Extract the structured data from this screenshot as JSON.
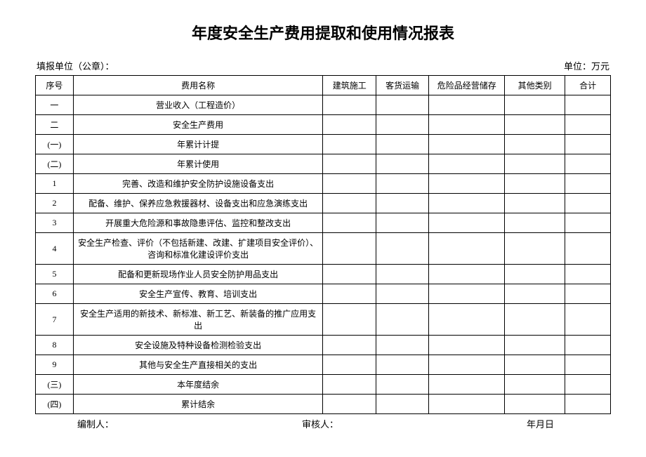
{
  "title": "年度安全生产费用提取和使用情况报表",
  "meta": {
    "left": "填报单位（公章）：",
    "right": "单位：万元"
  },
  "headers": {
    "seq": "序号",
    "name": "费用名称",
    "col_a": "建筑施工",
    "col_b": "客货运输",
    "col_c": "危险品经营储存",
    "col_d": "其他类别",
    "col_e": "合计"
  },
  "rows": [
    {
      "seq": "一",
      "name": "营业收入（工程造价）",
      "a": "",
      "b": "",
      "c": "",
      "d": "",
      "e": ""
    },
    {
      "seq": "二",
      "name": "安全生产费用",
      "a": "",
      "b": "",
      "c": "",
      "d": "",
      "e": ""
    },
    {
      "seq": "(一)",
      "name": "年累计计提",
      "a": "",
      "b": "",
      "c": "",
      "d": "",
      "e": ""
    },
    {
      "seq": "(二)",
      "name": "年累计使用",
      "a": "",
      "b": "",
      "c": "",
      "d": "",
      "e": ""
    },
    {
      "seq": "1",
      "name": "完善、改造和维护安全防护设施设备支出",
      "a": "",
      "b": "",
      "c": "",
      "d": "",
      "e": ""
    },
    {
      "seq": "2",
      "name": "配备、维护、保养应急救援器材、设备支出和应急演练支出",
      "a": "",
      "b": "",
      "c": "",
      "d": "",
      "e": ""
    },
    {
      "seq": "3",
      "name": "开展重大危险源和事故隐患评估、监控和整改支出",
      "a": "",
      "b": "",
      "c": "",
      "d": "",
      "e": ""
    },
    {
      "seq": "4",
      "name": "安全生产检查、评价（不包括新建、改建、扩建项目安全评价）、咨询和标准化建设评价支出",
      "a": "",
      "b": "",
      "c": "",
      "d": "",
      "e": "",
      "tall": true
    },
    {
      "seq": "5",
      "name": "配备和更新现场作业人员安全防护用品支出",
      "a": "",
      "b": "",
      "c": "",
      "d": "",
      "e": ""
    },
    {
      "seq": "6",
      "name": "安全生产宣传、教育、培训支出",
      "a": "",
      "b": "",
      "c": "",
      "d": "",
      "e": ""
    },
    {
      "seq": "7",
      "name": "安全生产适用的新技术、新标准、新工艺、新装备的推广应用支出",
      "a": "",
      "b": "",
      "c": "",
      "d": "",
      "e": ""
    },
    {
      "seq": "8",
      "name": "安全设施及特种设备检测检验支出",
      "a": "",
      "b": "",
      "c": "",
      "d": "",
      "e": ""
    },
    {
      "seq": "9",
      "name": "其他与安全生产直接相关的支出",
      "a": "",
      "b": "",
      "c": "",
      "d": "",
      "e": ""
    },
    {
      "seq": "(三)",
      "name": "本年度结余",
      "a": "",
      "b": "",
      "c": "",
      "d": "",
      "e": ""
    },
    {
      "seq": "(四)",
      "name": "累计结余",
      "a": "",
      "b": "",
      "c": "",
      "d": "",
      "e": ""
    }
  ],
  "footer": {
    "preparer": "编制人：",
    "reviewer": "审核人：",
    "date": "年月日"
  }
}
